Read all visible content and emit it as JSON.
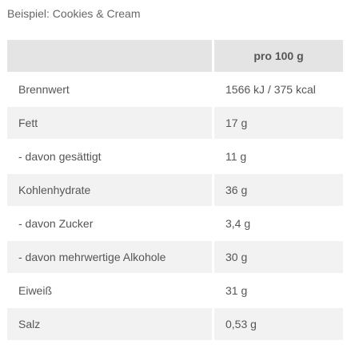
{
  "caption": "Beispiel: Cookies & Cream",
  "table": {
    "header": {
      "label": "",
      "value": "pro 100 g"
    },
    "rows": [
      {
        "label": "Brennwert",
        "value": "1566 kJ / 375 kcal"
      },
      {
        "label": "Fett",
        "value": "17 g"
      },
      {
        "label": "- davon gesättigt",
        "value": "11 g"
      },
      {
        "label": "Kohlenhydrate",
        "value": "36 g"
      },
      {
        "label": "- davon Zucker",
        "value": "3,4 g"
      },
      {
        "label": "- davon mehrwertige Alkohole",
        "value": "30 g"
      },
      {
        "label": "Eiweiß",
        "value": "31 g"
      },
      {
        "label": "Salz",
        "value": "0,53 g"
      }
    ]
  },
  "colors": {
    "header_bg": "#e4e4e4",
    "stripe_bg": "#f2f2f2",
    "text": "#555555"
  }
}
